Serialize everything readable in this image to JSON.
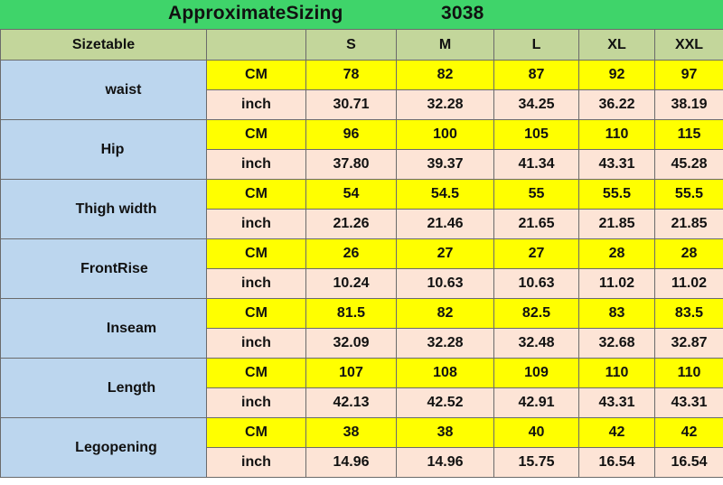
{
  "title": "ApproximateSizing",
  "style_code": "3038",
  "header": {
    "label": "Sizetable",
    "unit_column": "",
    "sizes": [
      "S",
      "M",
      "L",
      "XL",
      "XXL"
    ]
  },
  "measurements": [
    {
      "name": "waist",
      "cm_label": "CM",
      "in_label": "inch",
      "cm": [
        "78",
        "82",
        "87",
        "92",
        "97"
      ],
      "inch": [
        "30.71",
        "32.28",
        "34.25",
        "36.22",
        "38.19"
      ]
    },
    {
      "name": "Hip",
      "cm_label": "CM",
      "in_label": "inch",
      "cm": [
        "96",
        "100",
        "105",
        "110",
        "115"
      ],
      "inch": [
        "37.80",
        "39.37",
        "41.34",
        "43.31",
        "45.28"
      ]
    },
    {
      "name": "Thigh width",
      "cm_label": "CM",
      "in_label": "inch",
      "cm": [
        "54",
        "54.5",
        "55",
        "55.5",
        "55.5"
      ],
      "inch": [
        "21.26",
        "21.46",
        "21.65",
        "21.85",
        "21.85"
      ]
    },
    {
      "name": "FrontRise",
      "cm_label": "CM",
      "in_label": "inch",
      "cm": [
        "26",
        "27",
        "27",
        "28",
        "28"
      ],
      "inch": [
        "10.24",
        "10.63",
        "10.63",
        "11.02",
        "11.02"
      ]
    },
    {
      "name": "Inseam",
      "cm_label": "CM",
      "in_label": "inch",
      "cm": [
        "81.5",
        "82",
        "82.5",
        "83",
        "83.5"
      ],
      "inch": [
        "32.09",
        "32.28",
        "32.48",
        "32.68",
        "32.87"
      ]
    },
    {
      "name": "Length",
      "cm_label": "CM",
      "in_label": "inch",
      "cm": [
        "107",
        "108",
        "109",
        "110",
        "110"
      ],
      "inch": [
        "42.13",
        "42.52",
        "42.91",
        "43.31",
        "43.31"
      ]
    },
    {
      "name": "Legopening",
      "cm_label": "CM",
      "in_label": "inch",
      "cm": [
        "38",
        "38",
        "40",
        "42",
        "42"
      ],
      "inch": [
        "14.96",
        "14.96",
        "15.75",
        "16.54",
        "16.54"
      ]
    }
  ],
  "colors": {
    "title_bar": "#3fd46a",
    "header_row": "#c3d69b",
    "measure_column": "#bcd6ee",
    "cm_row": "#ffff00",
    "inch_row": "#fde4d6"
  }
}
